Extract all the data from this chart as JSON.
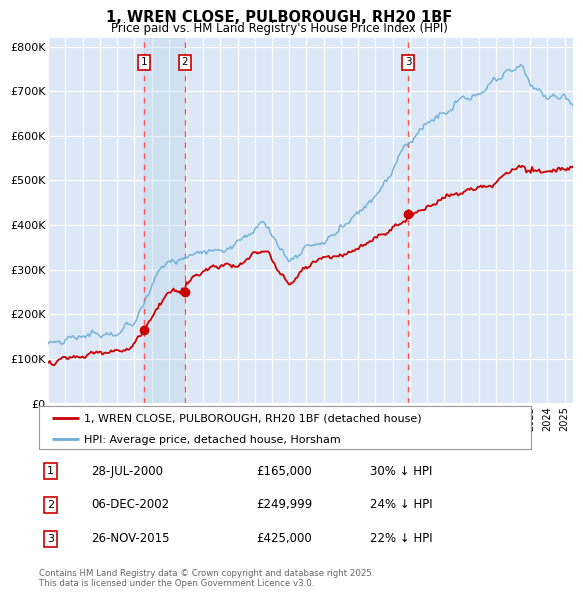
{
  "title": "1, WREN CLOSE, PULBOROUGH, RH20 1BF",
  "subtitle": "Price paid vs. HM Land Registry's House Price Index (HPI)",
  "ylabel_ticks": [
    "£0",
    "£100K",
    "£200K",
    "£300K",
    "£400K",
    "£500K",
    "£600K",
    "£700K",
    "£800K"
  ],
  "yvalues": [
    0,
    100000,
    200000,
    300000,
    400000,
    500000,
    600000,
    700000,
    800000
  ],
  "ylim": [
    0,
    820000
  ],
  "xlim_start": 1995.0,
  "xlim_end": 2025.5,
  "background_color": "#ffffff",
  "chart_bg": "#dce8f5",
  "grid_color": "#ffffff",
  "hpi_color": "#6baed6",
  "sale_color": "#cc0000",
  "dashed_color": "#ff5555",
  "purchase_box_color": "#cc0000",
  "shade_color": "#c8ddf0",
  "transactions": [
    {
      "num": 1,
      "date_label": "28-JUL-2000",
      "price": 165000,
      "price_str": "£165,000",
      "pct": "30%",
      "year": 2000.57
    },
    {
      "num": 2,
      "date_label": "06-DEC-2002",
      "price": 249999,
      "price_str": "£249,999",
      "pct": "24%",
      "year": 2002.92
    },
    {
      "num": 3,
      "date_label": "26-NOV-2015",
      "price": 425000,
      "price_str": "£425,000",
      "pct": "22%",
      "year": 2015.9
    }
  ],
  "legend_entries": [
    "1, WREN CLOSE, PULBOROUGH, RH20 1BF (detached house)",
    "HPI: Average price, detached house, Horsham"
  ],
  "footnote": "Contains HM Land Registry data © Crown copyright and database right 2025.\nThis data is licensed under the Open Government Licence v3.0."
}
